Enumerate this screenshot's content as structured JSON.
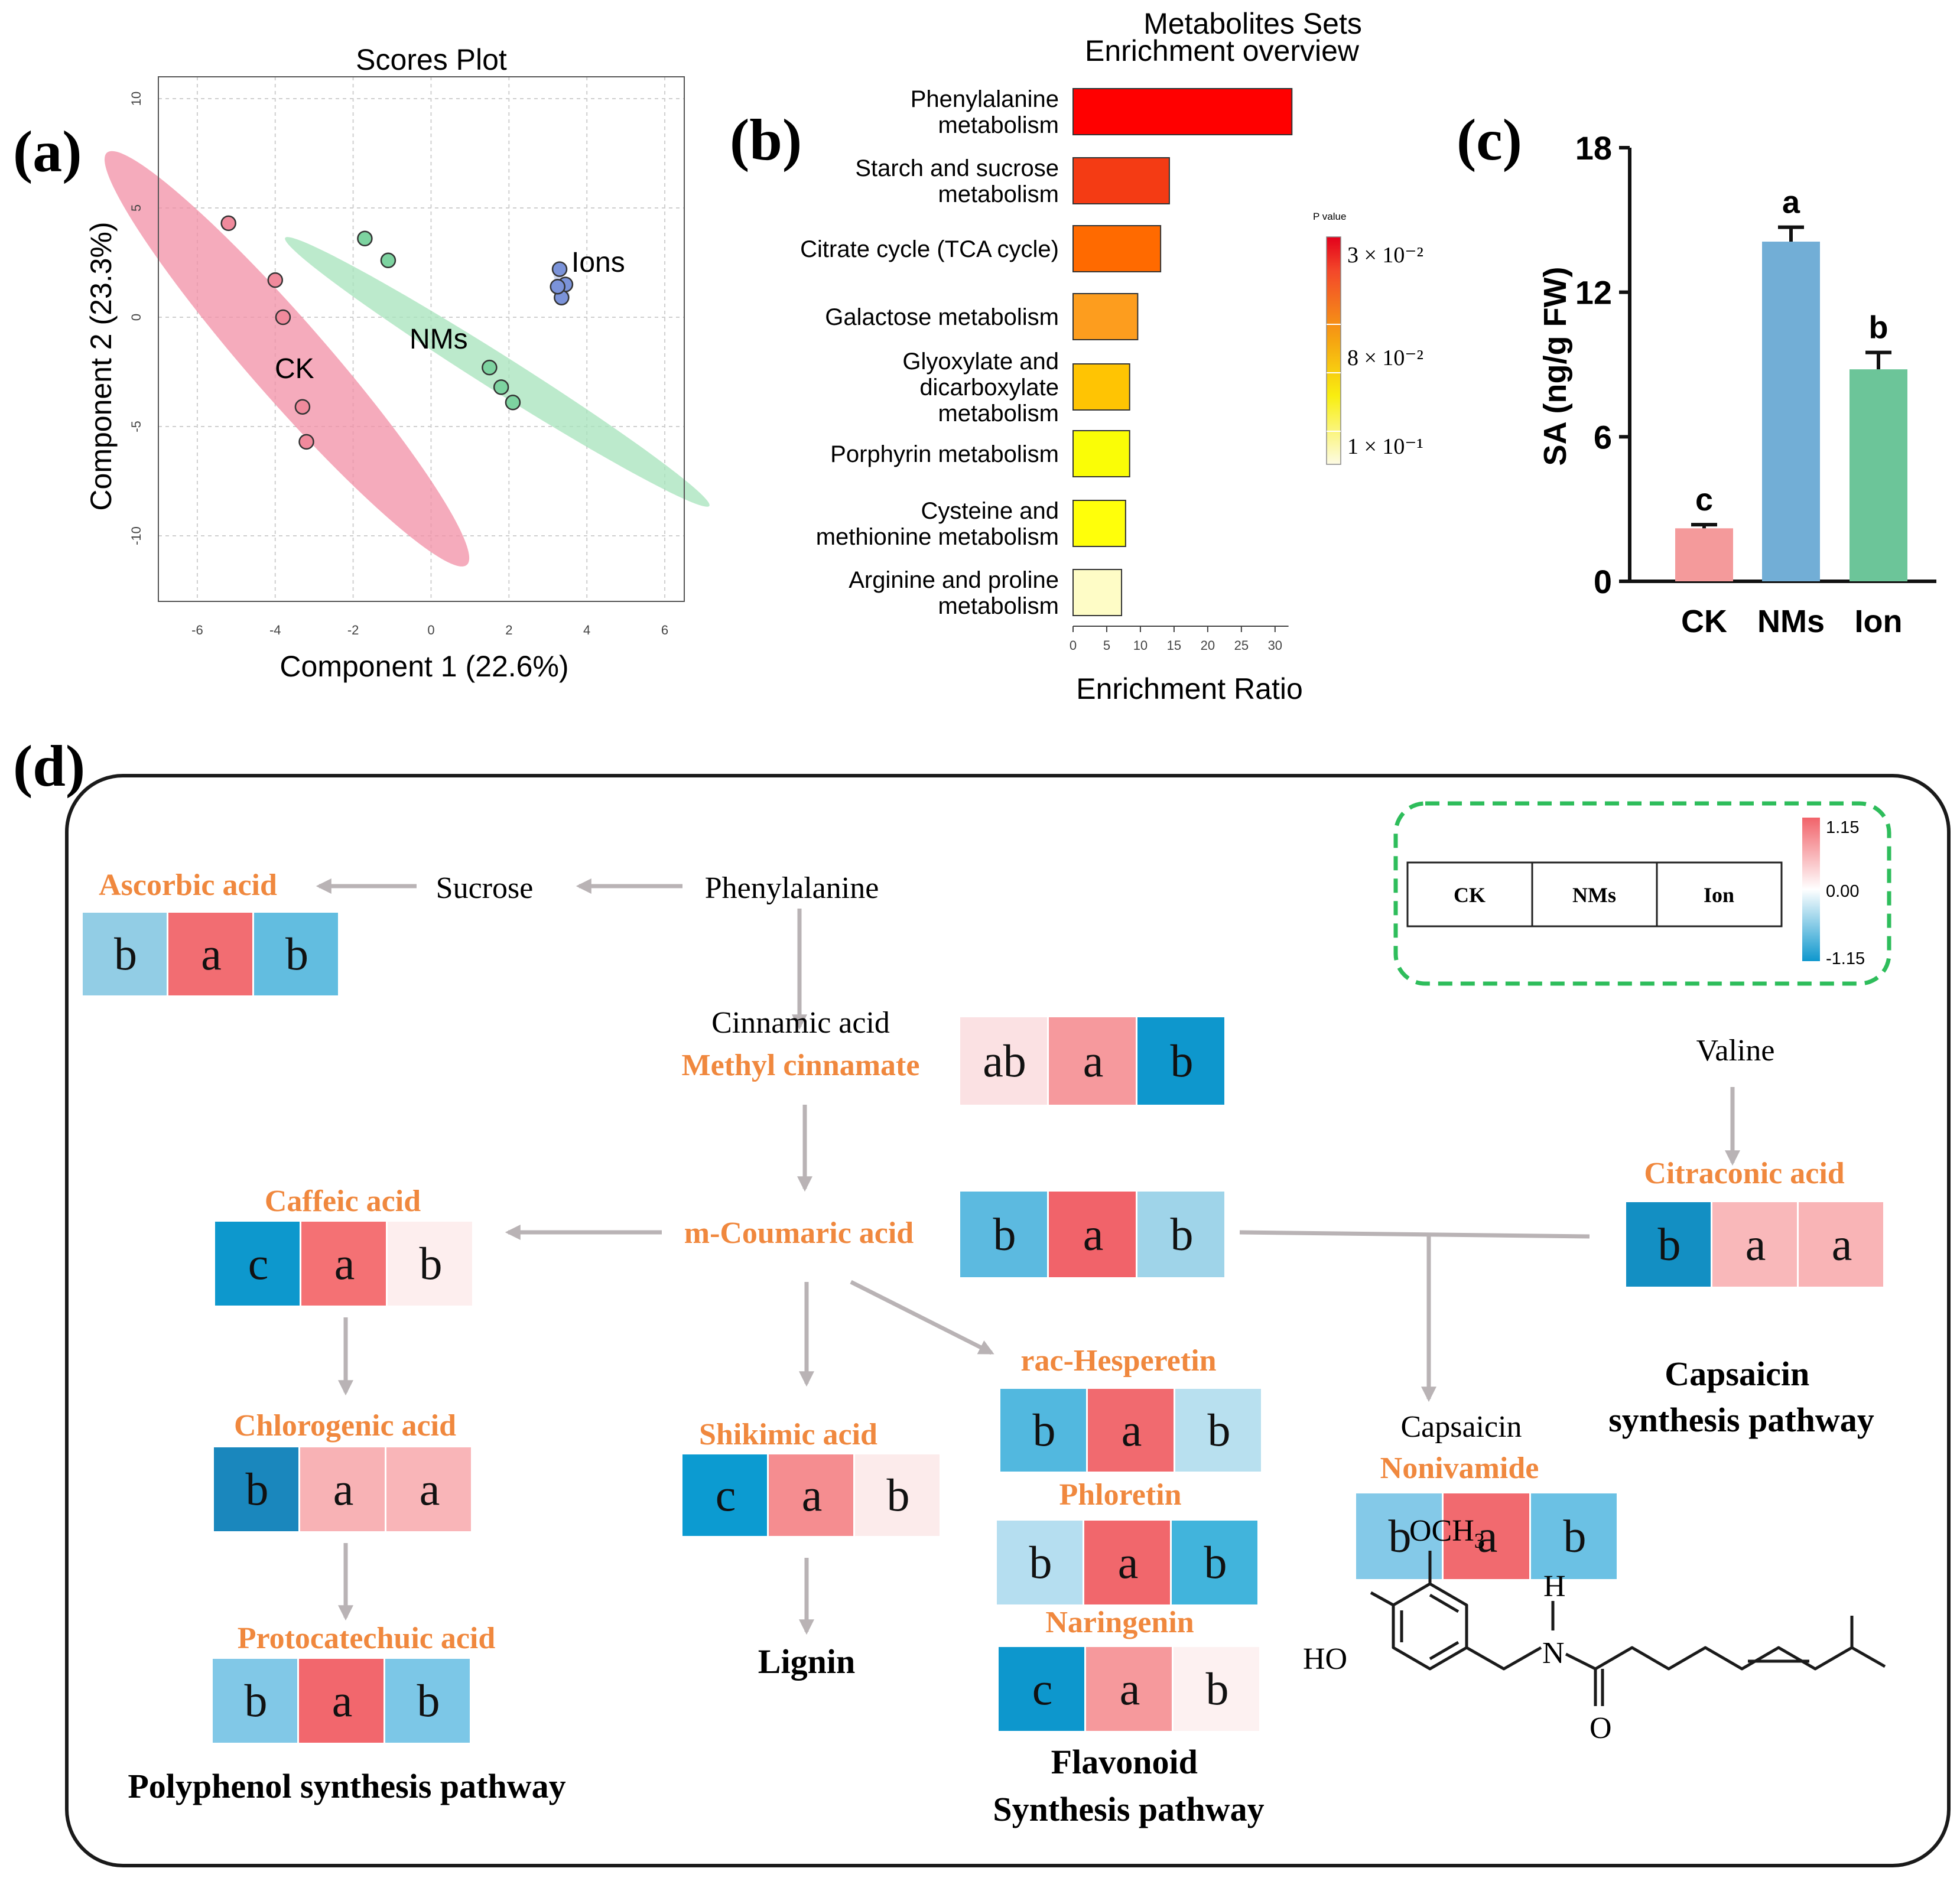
{
  "panel_labels": {
    "a": "(a)",
    "b": "(b)",
    "c": "(c)",
    "d": "(d)"
  },
  "chart_data": [
    {
      "type": "scatter",
      "panel": "a",
      "title": "Scores Plot",
      "xlabel": "Component 1 (22.6%)",
      "ylabel": "Component 2 (23.3%)",
      "xlim": [
        -7,
        6.5
      ],
      "ylim": [
        -13,
        11
      ],
      "xticks": [
        -6,
        -4,
        -2,
        0,
        2,
        4,
        6
      ],
      "yticks": [
        -10,
        -5,
        0,
        5,
        10
      ],
      "grid": true,
      "series": [
        {
          "name": "CK",
          "color": "#f08a9c",
          "ellipse_color": "#f28fa6",
          "points": [
            [
              -5.2,
              4.3
            ],
            [
              -4.0,
              1.7
            ],
            [
              -3.8,
              0.0
            ],
            [
              -3.3,
              -4.1
            ],
            [
              -3.2,
              -5.7
            ]
          ],
          "ellipse": {
            "center": [
              -3.7,
              -1.9
            ],
            "axes": [
              10.5,
              1.0
            ],
            "angle_deg": -63.9
          }
        },
        {
          "name": "NMs",
          "color": "#7dd3a0",
          "ellipse_color": "#a6e3bb",
          "points": [
            [
              -1.7,
              3.6
            ],
            [
              -1.1,
              2.6
            ],
            [
              1.5,
              -2.3
            ],
            [
              1.8,
              -3.2
            ],
            [
              2.1,
              -3.9
            ]
          ],
          "ellipse": {
            "center": [
              1.7,
              -2.5
            ],
            "axes": [
              8.2,
              0.45
            ],
            "angle_deg": -48.4
          }
        },
        {
          "name": "Ions",
          "color": "#7b93d9",
          "ellipse_color": "#c5d0f0",
          "points": [
            [
              3.3,
              2.2
            ],
            [
              3.45,
              1.5
            ],
            [
              3.35,
              0.9
            ],
            [
              3.25,
              1.4
            ]
          ],
          "ellipse": {
            "center": [
              3.35,
              1.5
            ],
            "axes": [
              0.7,
              0.12
            ],
            "angle_deg": -75
          }
        }
      ]
    },
    {
      "type": "bar",
      "panel": "b",
      "orientation": "horizontal",
      "title": "Metabolites Sets\nEnrichment overview",
      "xlabel": "Enrichment Ratio",
      "xlim": [
        0,
        33
      ],
      "xticks": [
        0,
        5,
        10,
        15,
        20,
        25,
        30
      ],
      "categories": [
        "Phenylalanine\nmetabolism",
        "Starch and sucrose\nmetabolism",
        "Citrate cycle (TCA cycle)",
        "Galactose metabolism",
        "Glyoxylate and\ndicarboxylate\nmetabolism",
        "Porphyrin metabolism",
        "Cysteine and\nmethionine metabolism",
        "Arginine and proline\nmetabolism"
      ],
      "values": [
        32.5,
        14.3,
        13.0,
        9.6,
        8.4,
        8.4,
        7.8,
        7.2
      ],
      "bar_colors": [
        "#ff0000",
        "#f43b14",
        "#ff6a00",
        "#fd9d1e",
        "#ffc403",
        "#fafd06",
        "#ffff0a",
        "#fefcc6"
      ],
      "colorbar": {
        "title": "P value",
        "labels": [
          "3 × 10⁻²",
          "8 × 10⁻²",
          "1 × 10⁻¹"
        ]
      }
    },
    {
      "type": "bar",
      "panel": "c",
      "ylabel": "SA (ng/g FW)",
      "ylim": [
        0,
        18
      ],
      "yticks": [
        0,
        6,
        12,
        18
      ],
      "categories": [
        "CK",
        "NMs",
        "Ion"
      ],
      "values": [
        2.2,
        14.1,
        8.8
      ],
      "errors": [
        0.15,
        0.6,
        0.7
      ],
      "letters": [
        "c",
        "a",
        "b"
      ],
      "bar_colors": [
        "#f49a9b",
        "#72aed6",
        "#6cc599"
      ]
    }
  ],
  "pathway": {
    "legend": {
      "columns": [
        "CK",
        "NMs",
        "Ion"
      ],
      "scale": [
        "1.15",
        "0.00",
        "-1.15"
      ]
    },
    "plain_labels": {
      "sucrose": "Sucrose",
      "phenylalanine": "Phenylalanine",
      "cinnamic": "Cinnamic acid",
      "valine": "Valine",
      "capsaicin": "Capsaicin",
      "lignin": "Lignin",
      "capsaicin_path_1": "Capsaicin",
      "capsaicin_path_2": "synthesis pathway",
      "polyphenol_path": "Polyphenol synthesis pathway",
      "flavonoid_path_1": "Flavonoid",
      "flavonoid_path_2": "Synthesis pathway"
    },
    "metabolites": [
      {
        "name": "Ascorbic acid",
        "cells": [
          {
            "letter": "b",
            "color": "#92cde5"
          },
          {
            "letter": "a",
            "color": "#f26d72"
          },
          {
            "letter": "b",
            "color": "#62bde0"
          }
        ]
      },
      {
        "name": "Methyl cinnamate",
        "cells": [
          {
            "letter": "ab",
            "color": "#fbe1e3"
          },
          {
            "letter": "a",
            "color": "#f6999d"
          },
          {
            "letter": "b",
            "color": "#0e97cd"
          }
        ]
      },
      {
        "name": "m-Coumaric acid",
        "cells": [
          {
            "letter": "b",
            "color": "#5cbae0"
          },
          {
            "letter": "a",
            "color": "#f1636a"
          },
          {
            "letter": "b",
            "color": "#9fd4e9"
          }
        ]
      },
      {
        "name": "Citraconic acid",
        "cells": [
          {
            "letter": "b",
            "color": "#138fc3"
          },
          {
            "letter": "a",
            "color": "#f9b8ba"
          },
          {
            "letter": "a",
            "color": "#f9b4b6"
          }
        ]
      },
      {
        "name": "Caffeic acid",
        "cells": [
          {
            "letter": "c",
            "color": "#0d98cd"
          },
          {
            "letter": "a",
            "color": "#f47174"
          },
          {
            "letter": "b",
            "color": "#fdeeee"
          }
        ]
      },
      {
        "name": "Chlorogenic acid",
        "cells": [
          {
            "letter": "b",
            "color": "#1a87bd"
          },
          {
            "letter": "a",
            "color": "#f8b2b5"
          },
          {
            "letter": "a",
            "color": "#f9b5b8"
          }
        ]
      },
      {
        "name": "Protocatechuic acid",
        "cells": [
          {
            "letter": "b",
            "color": "#81c8e7"
          },
          {
            "letter": "a",
            "color": "#f2676d"
          },
          {
            "letter": "b",
            "color": "#7cc7e7"
          }
        ]
      },
      {
        "name": "Shikimic acid",
        "cells": [
          {
            "letter": "c",
            "color": "#0c9bd1"
          },
          {
            "letter": "a",
            "color": "#f58d90"
          },
          {
            "letter": "b",
            "color": "#fcebeb"
          }
        ]
      },
      {
        "name": "rac-Hesperetin",
        "cells": [
          {
            "letter": "b",
            "color": "#52b8df"
          },
          {
            "letter": "a",
            "color": "#f16a6f"
          },
          {
            "letter": "b",
            "color": "#b8e0ef"
          }
        ]
      },
      {
        "name": "Phloretin",
        "cells": [
          {
            "letter": "b",
            "color": "#b5def0"
          },
          {
            "letter": "a",
            "color": "#f1676c"
          },
          {
            "letter": "b",
            "color": "#41b4dc"
          }
        ]
      },
      {
        "name": "Naringenin",
        "cells": [
          {
            "letter": "c",
            "color": "#0d97cd"
          },
          {
            "letter": "a",
            "color": "#f6999c"
          },
          {
            "letter": "b",
            "color": "#fdf1f1"
          }
        ]
      },
      {
        "name": "Nonivamide",
        "cells": [
          {
            "letter": "b",
            "color": "#84c9e8"
          },
          {
            "letter": "a",
            "color": "#f16a6f"
          },
          {
            "letter": "b",
            "color": "#6bc1e4"
          }
        ]
      }
    ],
    "structure_labels": {
      "och3": "OCH",
      "och3_sub": "3",
      "ho": "HO",
      "h": "H",
      "n": "N",
      "o": "O"
    }
  },
  "colors": {
    "orange": "#f0883e",
    "arrow": "#b9b3b5",
    "dash": "#2ebd5b"
  }
}
